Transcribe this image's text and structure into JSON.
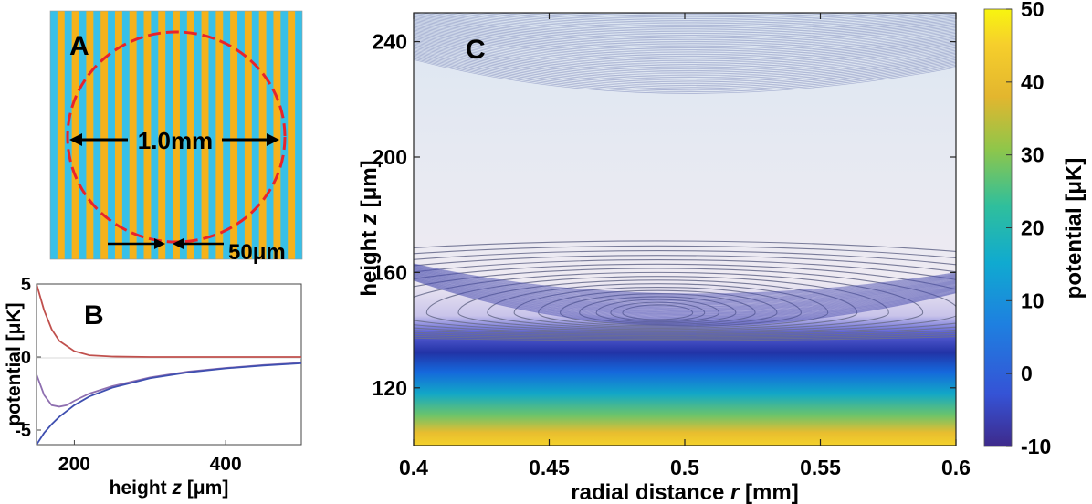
{
  "panel_a": {
    "letter": "A",
    "diameter_label": "1.0mm",
    "period_label": "50μm",
    "colors": {
      "stripe_a": "#f5b21b",
      "stripe_b": "#38c0e8",
      "circle": "#e8232b"
    }
  },
  "chart_data": [
    {
      "panel": "B",
      "type": "line",
      "xlabel_text": "height ",
      "xlabel_var": "z",
      "xlabel_unit": " [μm]",
      "ylabel": "potential [μK]",
      "xlim": [
        150,
        500
      ],
      "ylim": [
        -6,
        5
      ],
      "xticks": [
        "200",
        "400"
      ],
      "yticks": [
        "5",
        "0",
        "-5"
      ],
      "series": [
        {
          "color": "#c0504d",
          "x": [
            150,
            160,
            170,
            180,
            200,
            220,
            250,
            300,
            350,
            400,
            450,
            500
          ],
          "values": [
            5.0,
            3.2,
            1.9,
            1.1,
            0.4,
            0.12,
            0.03,
            0.0,
            0.0,
            0.0,
            0.0,
            0.0
          ]
        },
        {
          "color": "#8e6fb0",
          "x": [
            150,
            160,
            170,
            180,
            190,
            200,
            220,
            250,
            300,
            350,
            400,
            450,
            500
          ],
          "values": [
            -1.2,
            -2.6,
            -3.3,
            -3.4,
            -3.3,
            -3.0,
            -2.5,
            -2.0,
            -1.4,
            -1.0,
            -0.75,
            -0.55,
            -0.4
          ]
        },
        {
          "color": "#3f4fb0",
          "x": [
            150,
            160,
            170,
            180,
            190,
            200,
            220,
            250,
            300,
            350,
            400,
            450,
            500
          ],
          "values": [
            -6.0,
            -5.2,
            -4.6,
            -4.1,
            -3.7,
            -3.3,
            -2.7,
            -2.1,
            -1.45,
            -1.05,
            -0.78,
            -0.58,
            -0.43
          ]
        }
      ]
    },
    {
      "panel": "C",
      "type": "heatmap",
      "xlabel_text": "radial distance ",
      "xlabel_var": "r",
      "xlabel_unit": " [mm]",
      "ylabel_text": "height ",
      "ylabel_var": "z",
      "ylabel_unit": " [μm]",
      "xlim": [
        0.4,
        0.6
      ],
      "ylim": [
        100,
        250
      ],
      "xticks": [
        "0.4",
        "0.45",
        "0.5",
        "0.55",
        "0.6"
      ],
      "yticks": [
        "120",
        "160",
        "200",
        "240"
      ],
      "minimum": {
        "r": 0.49,
        "z": 146
      },
      "colorbar": {
        "label": "potential [μK]",
        "range": [
          -10,
          50
        ],
        "ticks": [
          "50",
          "40",
          "30",
          "20",
          "10",
          "0",
          "-10"
        ]
      }
    }
  ]
}
